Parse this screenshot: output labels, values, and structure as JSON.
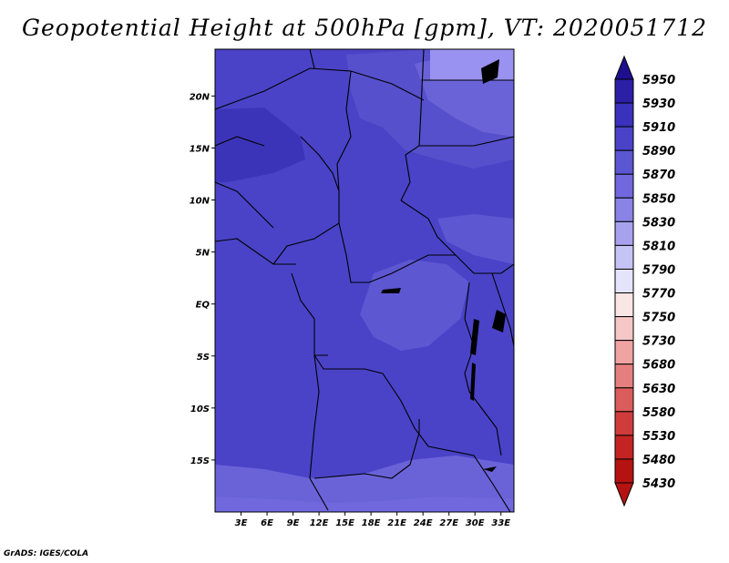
{
  "title": "Geopotential Height at 500hPa [gpm], VT: 2020051712",
  "footer": "GrADS: IGES/COLA",
  "chart_data": {
    "type": "heatmap",
    "title": "Geopotential Height at 500hPa [gpm], VT: 2020051712",
    "variable": "Geopotential Height at 500hPa",
    "units": "gpm",
    "valid_time": "2020051712",
    "lon_range": [
      0,
      34.5
    ],
    "lat_range": [
      -20,
      24.5
    ],
    "x_ticks": [
      "3E",
      "6E",
      "9E",
      "12E",
      "15E",
      "18E",
      "21E",
      "24E",
      "27E",
      "30E",
      "33E"
    ],
    "x_tick_values": [
      3,
      6,
      9,
      12,
      15,
      18,
      21,
      24,
      27,
      30,
      33
    ],
    "y_ticks": [
      "20N",
      "15N",
      "10N",
      "5N",
      "EQ",
      "5S",
      "10S",
      "15S"
    ],
    "y_tick_values": [
      20,
      15,
      10,
      5,
      0,
      -5,
      -10,
      -15
    ],
    "colorbar": {
      "levels": [
        "5950",
        "5930",
        "5910",
        "5890",
        "5870",
        "5850",
        "5830",
        "5810",
        "5790",
        "5770",
        "5750",
        "5730",
        "5680",
        "5630",
        "5580",
        "5530",
        "5480",
        "5430"
      ],
      "colors": [
        "#1e0f8e",
        "#2b1fa6",
        "#3a31bd",
        "#4a43c8",
        "#5b56d2",
        "#7068dc",
        "#8a83e6",
        "#a8a2ee",
        "#c6c3f5",
        "#e6e4fb",
        "#fbe6e6",
        "#f6c7c7",
        "#efa3a3",
        "#e57f7f",
        "#db5c5c",
        "#d03c3c",
        "#c42323",
        "#b51212"
      ]
    },
    "regions": [
      {
        "name": "background",
        "range": "5870-5890",
        "color": "#4a43c8"
      },
      {
        "name": "north-central-plateau",
        "range": "5870-5890",
        "color": "#5650cc"
      },
      {
        "name": "northeast-lower",
        "range": "5850-5870",
        "color": "#6a63d8"
      },
      {
        "name": "northeast-corner",
        "range": "5830-5850",
        "color": "#9a92f0"
      },
      {
        "name": "sahel-west-high",
        "range": "5890-5910",
        "color": "#3c34b8"
      },
      {
        "name": "congo-basin-lower",
        "range": "5850-5870",
        "color": "#5e57d2"
      },
      {
        "name": "southern-edge-lower",
        "range": "5850-5870",
        "color": "#6a63d8"
      }
    ]
  }
}
